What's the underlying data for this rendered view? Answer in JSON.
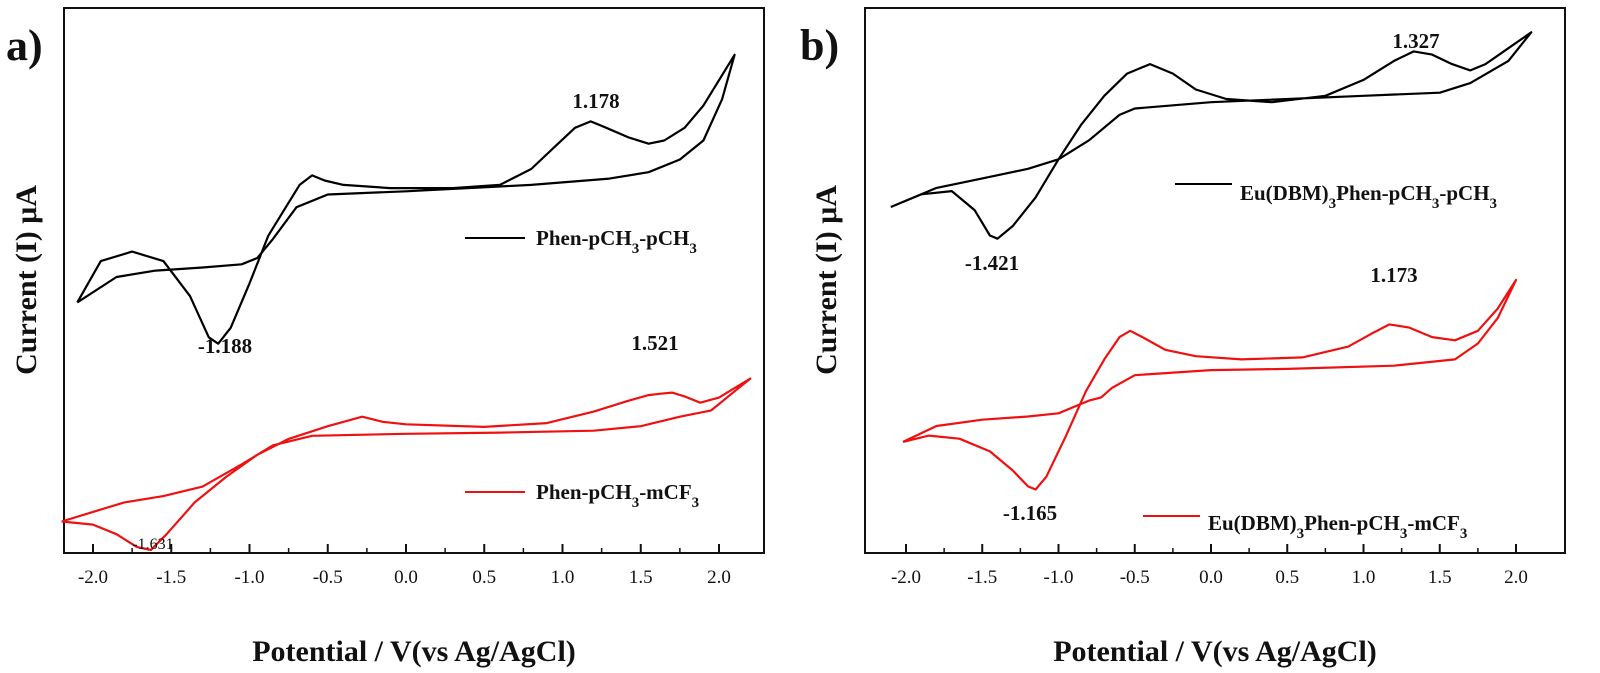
{
  "chart_data": [
    {
      "type": "line",
      "panel": "a)",
      "xlabel": "Potential / V(vs Ag/AgCl)",
      "ylabel": "Current (I) μA",
      "xlim": [
        -2.3,
        2.3
      ],
      "x_ticks": [
        "-2.0",
        "-1.5",
        "-1.0",
        "-0.5",
        "0.0",
        "0.5",
        "1.0",
        "1.5",
        "2.0"
      ],
      "y_ticks_labeled": false,
      "grid": false,
      "legend_position": "right",
      "series": [
        {
          "name_parts": [
            {
              "t": "Phen-pCH"
            },
            {
              "t": "3",
              "sub": true
            },
            {
              "t": "-pCH"
            },
            {
              "t": "3",
              "sub": true
            }
          ],
          "color": "#000000",
          "points": [
            [
              -2.1,
              1.6
            ],
            [
              -1.95,
              2.25
            ],
            [
              -1.75,
              2.4
            ],
            [
              -1.55,
              2.25
            ],
            [
              -1.38,
              1.7
            ],
            [
              -1.26,
              1.05
            ],
            [
              -1.2,
              0.95
            ],
            [
              -1.12,
              1.2
            ],
            [
              -1.0,
              1.9
            ],
            [
              -0.88,
              2.65
            ],
            [
              -0.78,
              3.05
            ],
            [
              -0.68,
              3.45
            ],
            [
              -0.6,
              3.6
            ],
            [
              -0.52,
              3.52
            ],
            [
              -0.4,
              3.45
            ],
            [
              -0.1,
              3.4
            ],
            [
              0.3,
              3.4
            ],
            [
              0.6,
              3.45
            ],
            [
              0.8,
              3.7
            ],
            [
              0.95,
              4.05
            ],
            [
              1.08,
              4.35
            ],
            [
              1.18,
              4.45
            ],
            [
              1.28,
              4.35
            ],
            [
              1.42,
              4.2
            ],
            [
              1.55,
              4.1
            ],
            [
              1.65,
              4.15
            ],
            [
              1.78,
              4.35
            ],
            [
              1.9,
              4.7
            ],
            [
              2.0,
              5.1
            ],
            [
              2.1,
              5.5
            ],
            [
              2.02,
              4.8
            ],
            [
              1.9,
              4.15
            ],
            [
              1.75,
              3.85
            ],
            [
              1.55,
              3.65
            ],
            [
              1.3,
              3.55
            ],
            [
              0.8,
              3.45
            ],
            [
              0.0,
              3.35
            ],
            [
              -0.5,
              3.3
            ],
            [
              -0.7,
              3.1
            ],
            [
              -0.85,
              2.6
            ],
            [
              -0.95,
              2.3
            ],
            [
              -1.05,
              2.2
            ],
            [
              -1.3,
              2.15
            ],
            [
              -1.6,
              2.1
            ],
            [
              -1.85,
              2.0
            ],
            [
              -2.1,
              1.6
            ]
          ]
        },
        {
          "name_parts": [
            {
              "t": "Phen-pCH"
            },
            {
              "t": "3",
              "sub": true
            },
            {
              "t": "-mCF"
            },
            {
              "t": "3",
              "sub": true
            }
          ],
          "color": "#ee1111",
          "points": [
            [
              -2.2,
              -1.85
            ],
            [
              -2.0,
              -1.9
            ],
            [
              -1.85,
              -2.05
            ],
            [
              -1.72,
              -2.25
            ],
            [
              -1.63,
              -2.3
            ],
            [
              -1.53,
              -2.05
            ],
            [
              -1.35,
              -1.55
            ],
            [
              -1.15,
              -1.15
            ],
            [
              -0.95,
              -0.8
            ],
            [
              -0.75,
              -0.55
            ],
            [
              -0.5,
              -0.35
            ],
            [
              -0.28,
              -0.2
            ],
            [
              -0.15,
              -0.28
            ],
            [
              0.0,
              -0.32
            ],
            [
              0.5,
              -0.36
            ],
            [
              0.9,
              -0.3
            ],
            [
              1.2,
              -0.12
            ],
            [
              1.42,
              0.05
            ],
            [
              1.55,
              0.14
            ],
            [
              1.62,
              0.16
            ],
            [
              1.7,
              0.18
            ],
            [
              1.78,
              0.12
            ],
            [
              1.88,
              0.02
            ],
            [
              2.0,
              0.1
            ],
            [
              2.1,
              0.25
            ],
            [
              2.2,
              0.4
            ],
            [
              2.1,
              0.2
            ],
            [
              1.95,
              -0.1
            ],
            [
              1.75,
              -0.2
            ],
            [
              1.5,
              -0.35
            ],
            [
              1.2,
              -0.42
            ],
            [
              0.6,
              -0.45
            ],
            [
              0.0,
              -0.47
            ],
            [
              -0.6,
              -0.5
            ],
            [
              -0.85,
              -0.65
            ],
            [
              -1.05,
              -0.95
            ],
            [
              -1.3,
              -1.3
            ],
            [
              -1.55,
              -1.45
            ],
            [
              -1.8,
              -1.55
            ],
            [
              -2.0,
              -1.7
            ],
            [
              -2.2,
              -1.85
            ]
          ]
        }
      ],
      "annotations": [
        "1.178",
        "-1.188",
        "1.521",
        "-1.631"
      ]
    },
    {
      "type": "line",
      "panel": "b)",
      "xlabel": "Potential / V(vs Ag/AgCl)",
      "ylabel": "Current (I) μA",
      "xlim": [
        -2.2,
        2.2
      ],
      "x_ticks": [
        "-2.0",
        "-1.5",
        "-1.0",
        "-0.5",
        "0.0",
        "0.5",
        "1.0",
        "1.5",
        "2.0"
      ],
      "y_ticks_labeled": false,
      "grid": false,
      "legend_position": "right",
      "series": [
        {
          "name_parts": [
            {
              "t": "Eu(DBM)"
            },
            {
              "t": "3",
              "sub": true
            },
            {
              "t": "Phen-pCH"
            },
            {
              "t": "3",
              "sub": true
            },
            {
              "t": "-pCH"
            },
            {
              "t": "3",
              "sub": true
            }
          ],
          "color": "#000000",
          "points": [
            [
              -2.1,
              2.3
            ],
            [
              -1.9,
              2.5
            ],
            [
              -1.7,
              2.55
            ],
            [
              -1.55,
              2.25
            ],
            [
              -1.45,
              1.85
            ],
            [
              -1.4,
              1.8
            ],
            [
              -1.3,
              2.0
            ],
            [
              -1.15,
              2.45
            ],
            [
              -1.0,
              3.05
            ],
            [
              -0.85,
              3.6
            ],
            [
              -0.7,
              4.05
            ],
            [
              -0.55,
              4.4
            ],
            [
              -0.4,
              4.55
            ],
            [
              -0.25,
              4.4
            ],
            [
              -0.1,
              4.15
            ],
            [
              0.1,
              4.0
            ],
            [
              0.4,
              3.95
            ],
            [
              0.75,
              4.05
            ],
            [
              1.0,
              4.3
            ],
            [
              1.2,
              4.6
            ],
            [
              1.33,
              4.75
            ],
            [
              1.45,
              4.7
            ],
            [
              1.58,
              4.55
            ],
            [
              1.7,
              4.45
            ],
            [
              1.8,
              4.55
            ],
            [
              1.95,
              4.8
            ],
            [
              2.1,
              5.05
            ],
            [
              1.95,
              4.6
            ],
            [
              1.7,
              4.25
            ],
            [
              1.5,
              4.1
            ],
            [
              1.0,
              4.05
            ],
            [
              0.0,
              3.95
            ],
            [
              -0.5,
              3.85
            ],
            [
              -0.6,
              3.75
            ],
            [
              -0.8,
              3.35
            ],
            [
              -1.0,
              3.05
            ],
            [
              -1.2,
              2.9
            ],
            [
              -1.5,
              2.75
            ],
            [
              -1.8,
              2.6
            ],
            [
              -2.1,
              2.3
            ]
          ]
        },
        {
          "name_parts": [
            {
              "t": "Eu(DBM)"
            },
            {
              "t": "3",
              "sub": true
            },
            {
              "t": "Phen-pCH"
            },
            {
              "t": "3",
              "sub": true
            },
            {
              "t": "-mCF"
            },
            {
              "t": "3",
              "sub": true
            }
          ],
          "color": "#ee1111",
          "points": [
            [
              -2.02,
              -1.4
            ],
            [
              -1.85,
              -1.3
            ],
            [
              -1.65,
              -1.35
            ],
            [
              -1.45,
              -1.55
            ],
            [
              -1.3,
              -1.85
            ],
            [
              -1.2,
              -2.1
            ],
            [
              -1.15,
              -2.15
            ],
            [
              -1.08,
              -1.95
            ],
            [
              -0.95,
              -1.3
            ],
            [
              -0.82,
              -0.6
            ],
            [
              -0.7,
              -0.1
            ],
            [
              -0.6,
              0.25
            ],
            [
              -0.53,
              0.35
            ],
            [
              -0.45,
              0.25
            ],
            [
              -0.3,
              0.05
            ],
            [
              -0.1,
              -0.05
            ],
            [
              0.2,
              -0.1
            ],
            [
              0.6,
              -0.07
            ],
            [
              0.9,
              0.1
            ],
            [
              1.05,
              0.3
            ],
            [
              1.17,
              0.45
            ],
            [
              1.3,
              0.4
            ],
            [
              1.45,
              0.25
            ],
            [
              1.6,
              0.2
            ],
            [
              1.75,
              0.35
            ],
            [
              1.88,
              0.7
            ],
            [
              2.0,
              1.15
            ],
            [
              1.88,
              0.55
            ],
            [
              1.75,
              0.15
            ],
            [
              1.6,
              -0.1
            ],
            [
              1.2,
              -0.2
            ],
            [
              0.5,
              -0.25
            ],
            [
              0.0,
              -0.27
            ],
            [
              -0.5,
              -0.35
            ],
            [
              -0.65,
              -0.55
            ],
            [
              -0.72,
              -0.7
            ],
            [
              -0.8,
              -0.75
            ],
            [
              -1.0,
              -0.95
            ],
            [
              -1.2,
              -1.0
            ],
            [
              -1.5,
              -1.05
            ],
            [
              -1.8,
              -1.15
            ],
            [
              -2.02,
              -1.4
            ]
          ]
        }
      ],
      "annotations": [
        "1.327",
        "-1.421",
        "1.173",
        "-1.165"
      ]
    }
  ]
}
